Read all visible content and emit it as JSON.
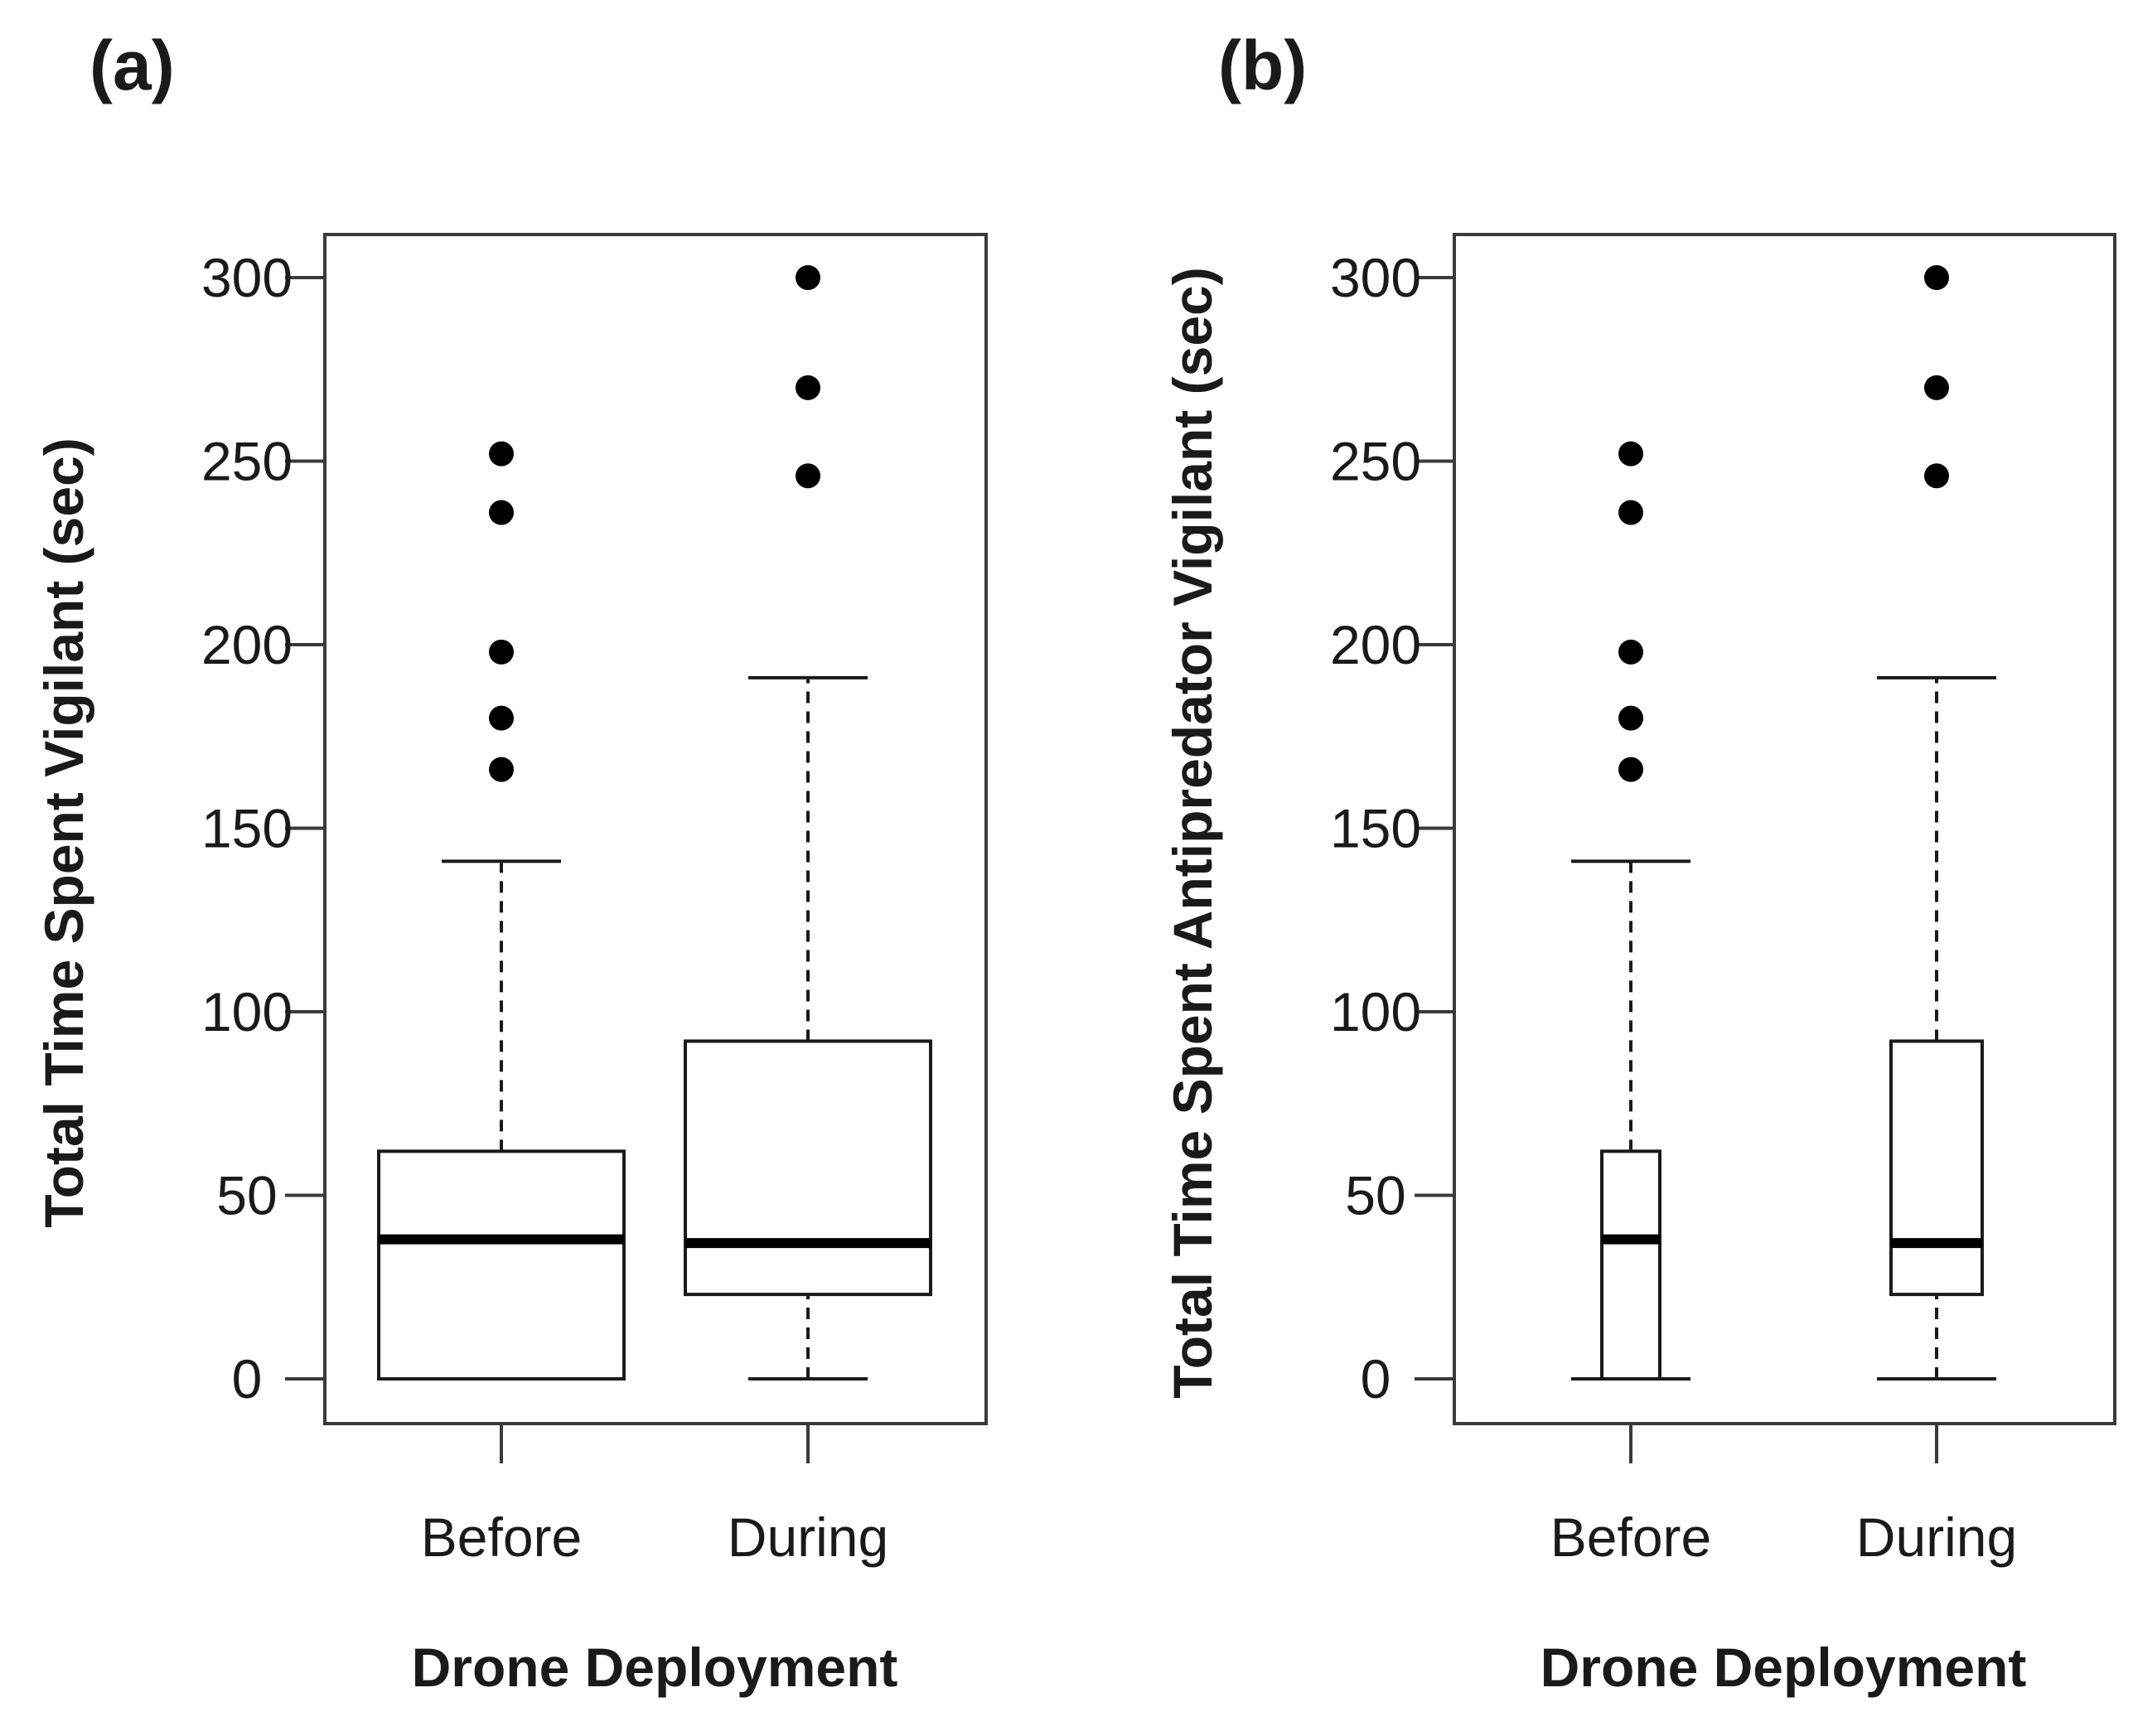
{
  "chart_data": [
    {
      "type": "boxplot",
      "panel_label": "(a)",
      "ylabel": "Total Time Spent Vigilant (sec)",
      "xlabel": "Drone Deployment",
      "ylim": [
        0,
        300
      ],
      "yticks": [
        0,
        50,
        100,
        150,
        200,
        250,
        300
      ],
      "categories": [
        "Before",
        "During"
      ],
      "series": [
        {
          "name": "Before",
          "whisker_low": 0,
          "q1": 0,
          "median": 38,
          "q3": 62,
          "whisker_high": 141,
          "outliers": [
            166,
            180,
            198,
            236,
            252
          ]
        },
        {
          "name": "During",
          "whisker_low": 0,
          "q1": 23,
          "median": 37,
          "q3": 92,
          "whisker_high": 191,
          "outliers": [
            246,
            270,
            300
          ]
        }
      ]
    },
    {
      "type": "boxplot",
      "panel_label": "(b)",
      "ylabel": "Total Time Spent Antipredator Vigilant (sec)",
      "xlabel": "Drone Deployment",
      "ylim": [
        0,
        300
      ],
      "yticks": [
        0,
        50,
        100,
        150,
        200,
        250,
        300
      ],
      "categories": [
        "Before",
        "During"
      ],
      "series": [
        {
          "name": "Before",
          "whisker_low": 0,
          "q1": 0,
          "median": 38,
          "q3": 62,
          "whisker_high": 141,
          "outliers": [
            166,
            180,
            198,
            236,
            252
          ]
        },
        {
          "name": "During",
          "whisker_low": 0,
          "q1": 23,
          "median": 37,
          "q3": 92,
          "whisker_high": 191,
          "outliers": [
            246,
            270,
            300
          ]
        }
      ]
    }
  ]
}
